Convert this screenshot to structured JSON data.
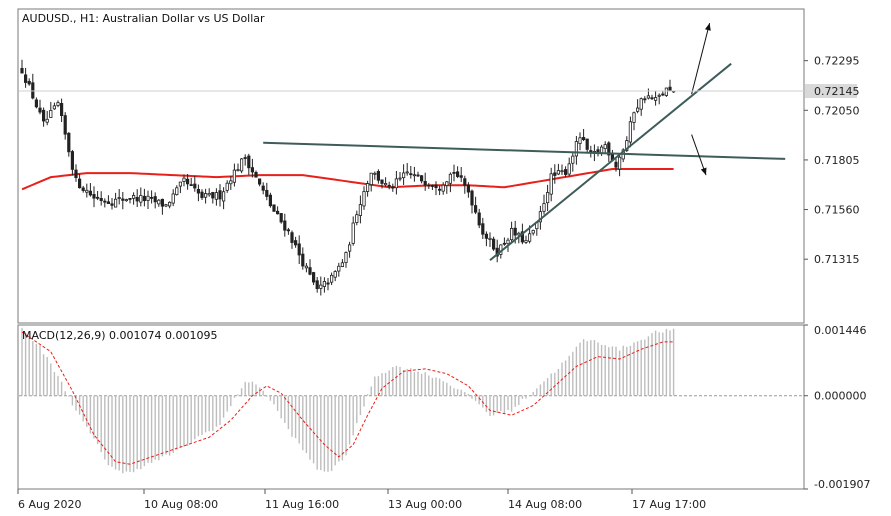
{
  "chart_data": [
    {
      "type": "candlestick",
      "title": "AUDUSD., H1:  Australian Dollar vs US Dollar",
      "ylim": [
        0.71,
        0.7255
      ],
      "y_ticks": [
        "0.72295",
        "0.72050",
        "0.71805",
        "0.71560",
        "0.71315"
      ],
      "y_tick_values": [
        0.72295,
        0.7205,
        0.71805,
        0.7156,
        0.71315
      ],
      "current_price": 0.72145,
      "current_price_label": "0.72145",
      "x_ticks": [
        "6 Aug 2020",
        "10 Aug 08:00",
        "11 Aug 16:00",
        "13 Aug 00:00",
        "14 Aug 08:00",
        "17 Aug 17:00"
      ],
      "price_path": [
        [
          0,
          0.7225
        ],
        [
          3,
          0.7212
        ],
        [
          6,
          0.7198
        ],
        [
          10,
          0.7208
        ],
        [
          15,
          0.717
        ],
        [
          20,
          0.7162
        ],
        [
          25,
          0.716
        ],
        [
          30,
          0.7162
        ],
        [
          35,
          0.7161
        ],
        [
          40,
          0.7158
        ],
        [
          45,
          0.717
        ],
        [
          50,
          0.7162
        ],
        [
          55,
          0.7163
        ],
        [
          58,
          0.7172
        ],
        [
          62,
          0.7182
        ],
        [
          66,
          0.7168
        ],
        [
          70,
          0.7155
        ],
        [
          74,
          0.7145
        ],
        [
          78,
          0.713
        ],
        [
          82,
          0.7116
        ],
        [
          86,
          0.7122
        ],
        [
          90,
          0.7133
        ],
        [
          93,
          0.7155
        ],
        [
          97,
          0.7175
        ],
        [
          102,
          0.7166
        ],
        [
          107,
          0.7174
        ],
        [
          112,
          0.717
        ],
        [
          116,
          0.7168
        ],
        [
          120,
          0.7175
        ],
        [
          124,
          0.7165
        ],
        [
          128,
          0.7145
        ],
        [
          132,
          0.7135
        ],
        [
          136,
          0.7145
        ],
        [
          140,
          0.714
        ],
        [
          143,
          0.7148
        ],
        [
          147,
          0.7172
        ],
        [
          151,
          0.7175
        ],
        [
          155,
          0.7192
        ],
        [
          158,
          0.7182
        ],
        [
          162,
          0.7188
        ],
        [
          165,
          0.7178
        ],
        [
          168,
          0.719
        ],
        [
          170,
          0.7205
        ],
        [
          173,
          0.7212
        ],
        [
          176,
          0.721
        ],
        [
          179,
          0.7215
        ],
        [
          181,
          0.7213
        ]
      ],
      "moving_average": [
        [
          0,
          0.7166
        ],
        [
          8,
          0.7172
        ],
        [
          18,
          0.7174
        ],
        [
          30,
          0.7174
        ],
        [
          42,
          0.7173
        ],
        [
          54,
          0.7172
        ],
        [
          66,
          0.7173
        ],
        [
          78,
          0.7173
        ],
        [
          90,
          0.717
        ],
        [
          102,
          0.7167
        ],
        [
          114,
          0.7168
        ],
        [
          124,
          0.7168
        ],
        [
          134,
          0.7167
        ],
        [
          144,
          0.717
        ],
        [
          154,
          0.7173
        ],
        [
          164,
          0.7176
        ],
        [
          174,
          0.7176
        ],
        [
          181,
          0.7176
        ]
      ],
      "trendlines": [
        {
          "name": "resistance",
          "from": [
            67,
            0.7189
          ],
          "to": [
            212,
            0.7181
          ]
        },
        {
          "name": "support",
          "from": [
            130,
            0.7131
          ],
          "to": [
            197,
            0.7228
          ]
        }
      ],
      "arrows": [
        {
          "name": "up",
          "from": [
            186,
            0.7213
          ],
          "to": [
            191,
            0.7248
          ]
        },
        {
          "name": "down",
          "from": [
            186,
            0.7193
          ],
          "to": [
            190,
            0.7173
          ]
        }
      ],
      "colors": {
        "candle": "#222222",
        "ma": "#e8201a",
        "trendline": "#3e5c5a",
        "arrow": "#111111",
        "grid": "#cfcfcf"
      }
    },
    {
      "type": "histogram-line",
      "title": "MACD(12,26,9) 0.001074 0.001095",
      "ylim": [
        -0.001907,
        0.001446
      ],
      "y_ticks": [
        "0.001446",
        "0.000000",
        "-0.001907"
      ],
      "y_tick_values": [
        0.001446,
        0.0,
        -0.001907
      ],
      "histogram_path": [
        [
          0,
          0.00135
        ],
        [
          5,
          0.001
        ],
        [
          10,
          0.0004
        ],
        [
          15,
          -0.0003
        ],
        [
          20,
          -0.0009
        ],
        [
          24,
          -0.0014
        ],
        [
          28,
          -0.0016
        ],
        [
          32,
          -0.0015
        ],
        [
          38,
          -0.0013
        ],
        [
          44,
          -0.0011
        ],
        [
          50,
          -0.0008
        ],
        [
          55,
          -0.0006
        ],
        [
          58,
          -0.0002
        ],
        [
          62,
          0.0003
        ],
        [
          66,
          0.0002
        ],
        [
          70,
          -0.0002
        ],
        [
          74,
          -0.0007
        ],
        [
          78,
          -0.0011
        ],
        [
          82,
          -0.0015
        ],
        [
          86,
          -0.00155
        ],
        [
          90,
          -0.0012
        ],
        [
          94,
          -0.0004
        ],
        [
          98,
          0.0004
        ],
        [
          104,
          0.0006
        ],
        [
          110,
          0.0005
        ],
        [
          116,
          0.00035
        ],
        [
          122,
          0.0001
        ],
        [
          126,
          -0.0001
        ],
        [
          130,
          -0.0004
        ],
        [
          136,
          -0.0003
        ],
        [
          142,
          0.0001
        ],
        [
          148,
          0.0005
        ],
        [
          152,
          0.0008
        ],
        [
          156,
          0.00115
        ],
        [
          160,
          0.0011
        ],
        [
          166,
          0.00095
        ],
        [
          172,
          0.00115
        ],
        [
          176,
          0.0013
        ],
        [
          181,
          0.00135
        ]
      ],
      "signal_path": [
        [
          0,
          0.0013
        ],
        [
          8,
          0.0009
        ],
        [
          14,
          0.0001
        ],
        [
          20,
          -0.0008
        ],
        [
          26,
          -0.00135
        ],
        [
          30,
          -0.0014
        ],
        [
          36,
          -0.00125
        ],
        [
          44,
          -0.00105
        ],
        [
          52,
          -0.00085
        ],
        [
          58,
          -0.0005
        ],
        [
          64,
          0.0
        ],
        [
          68,
          0.0002
        ],
        [
          72,
          5e-05
        ],
        [
          78,
          -0.0005
        ],
        [
          84,
          -0.001
        ],
        [
          88,
          -0.00125
        ],
        [
          92,
          -0.001
        ],
        [
          96,
          -0.0004
        ],
        [
          100,
          0.00015
        ],
        [
          106,
          0.0005
        ],
        [
          112,
          0.00055
        ],
        [
          118,
          0.00045
        ],
        [
          124,
          0.0002
        ],
        [
          130,
          -0.0003
        ],
        [
          136,
          -0.0004
        ],
        [
          142,
          -0.0002
        ],
        [
          148,
          0.0002
        ],
        [
          154,
          0.0006
        ],
        [
          160,
          0.0008
        ],
        [
          166,
          0.00075
        ],
        [
          172,
          0.00095
        ],
        [
          178,
          0.0011
        ],
        [
          181,
          0.0011
        ]
      ],
      "colors": {
        "histogram": "#bdbdbd",
        "signal": "#e8201a",
        "zero_line": "#9a9a9a"
      }
    }
  ]
}
